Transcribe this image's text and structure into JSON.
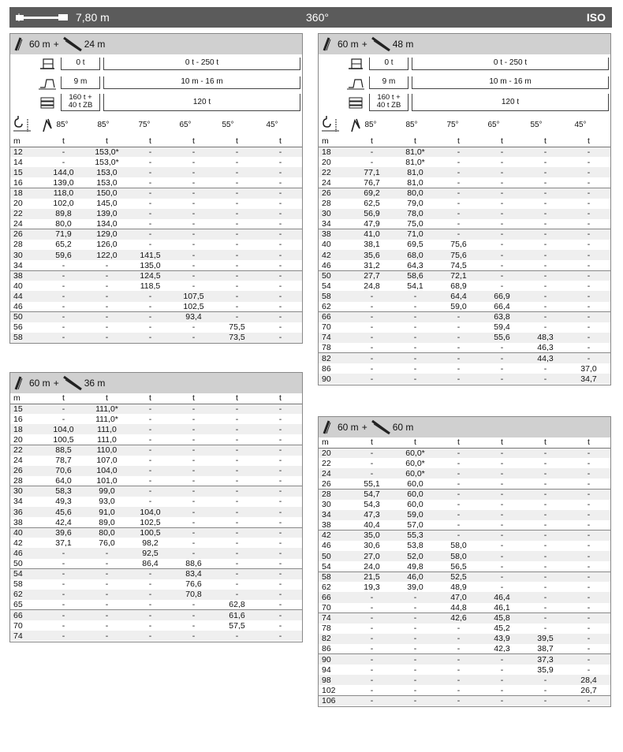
{
  "header": {
    "radius_label": "7,80 m",
    "swing_label": "360°",
    "norm_label": "ISO"
  },
  "config": {
    "counterweight_labels": [
      "0 t",
      "0 t - 250 t"
    ],
    "boom_length_labels": [
      "9 m",
      "10 m - 16 m"
    ],
    "ballast_labels": [
      "160 t +",
      "40 t ZB",
      "120 t"
    ],
    "angles": [
      "85°",
      "85°",
      "75°",
      "65°",
      "55°",
      "45°"
    ]
  },
  "panels": [
    {
      "id": "60-24",
      "main_boom": "60 m",
      "plus": "+",
      "jib": "24 m",
      "has_config": true,
      "units": [
        "m",
        "t",
        "t",
        "t",
        "t",
        "t",
        "t"
      ],
      "rows": [
        [
          "12",
          "-",
          "153,0*",
          "-",
          "-",
          "-",
          "-"
        ],
        [
          "14",
          "-",
          "153,0*",
          "-",
          "-",
          "-",
          "-"
        ],
        [
          "15",
          "144,0",
          "153,0",
          "-",
          "-",
          "-",
          "-"
        ],
        [
          "16",
          "139,0",
          "153,0",
          "-",
          "-",
          "-",
          "-"
        ],
        [
          "18",
          "118,0",
          "150,0",
          "-",
          "-",
          "-",
          "-"
        ],
        [
          "20",
          "102,0",
          "145,0",
          "-",
          "-",
          "-",
          "-"
        ],
        [
          "22",
          "89,8",
          "139,0",
          "-",
          "-",
          "-",
          "-"
        ],
        [
          "24",
          "80,0",
          "134,0",
          "-",
          "-",
          "-",
          "-"
        ],
        [
          "26",
          "71,9",
          "129,0",
          "-",
          "-",
          "-",
          "-"
        ],
        [
          "28",
          "65,2",
          "126,0",
          "-",
          "-",
          "-",
          "-"
        ],
        [
          "30",
          "59,6",
          "122,0",
          "141,5",
          "-",
          "-",
          "-"
        ],
        [
          "34",
          "-",
          "-",
          "135,0",
          "-",
          "-",
          "-"
        ],
        [
          "38",
          "-",
          "-",
          "124,5",
          "-",
          "-",
          "-"
        ],
        [
          "40",
          "-",
          "-",
          "118,5",
          "-",
          "-",
          "-"
        ],
        [
          "44",
          "-",
          "-",
          "-",
          "107,5",
          "-",
          "-"
        ],
        [
          "46",
          "-",
          "-",
          "-",
          "102,5",
          "-",
          "-"
        ],
        [
          "50",
          "-",
          "-",
          "-",
          "93,4",
          "-",
          "-"
        ],
        [
          "56",
          "-",
          "-",
          "-",
          "-",
          "75,5",
          "-"
        ],
        [
          "58",
          "-",
          "-",
          "-",
          "-",
          "73,5",
          "-"
        ]
      ]
    },
    {
      "id": "60-36",
      "main_boom": "60 m",
      "plus": "+",
      "jib": "36 m",
      "has_config": false,
      "units": [
        "m",
        "t",
        "t",
        "t",
        "t",
        "t",
        "t"
      ],
      "rows": [
        [
          "15",
          "-",
          "111,0*",
          "-",
          "-",
          "-",
          "-"
        ],
        [
          "16",
          "-",
          "111,0*",
          "-",
          "-",
          "-",
          "-"
        ],
        [
          "18",
          "104,0",
          "111,0",
          "-",
          "-",
          "-",
          "-"
        ],
        [
          "20",
          "100,5",
          "111,0",
          "-",
          "-",
          "-",
          "-"
        ],
        [
          "22",
          "88,5",
          "110,0",
          "-",
          "-",
          "-",
          "-"
        ],
        [
          "24",
          "78,7",
          "107,0",
          "-",
          "-",
          "-",
          "-"
        ],
        [
          "26",
          "70,6",
          "104,0",
          "-",
          "-",
          "-",
          "-"
        ],
        [
          "28",
          "64,0",
          "101,0",
          "-",
          "-",
          "-",
          "-"
        ],
        [
          "30",
          "58,3",
          "99,0",
          "-",
          "-",
          "-",
          "-"
        ],
        [
          "34",
          "49,3",
          "93,0",
          "-",
          "-",
          "-",
          "-"
        ],
        [
          "36",
          "45,6",
          "91,0",
          "104,0",
          "-",
          "-",
          "-"
        ],
        [
          "38",
          "42,4",
          "89,0",
          "102,5",
          "-",
          "-",
          "-"
        ],
        [
          "40",
          "39,6",
          "80,0",
          "100,5",
          "-",
          "-",
          "-"
        ],
        [
          "42",
          "37,1",
          "76,0",
          "98,2",
          "-",
          "-",
          "-"
        ],
        [
          "46",
          "-",
          "-",
          "92,5",
          "-",
          "-",
          "-"
        ],
        [
          "50",
          "-",
          "-",
          "86,4",
          "88,6",
          "-",
          "-"
        ],
        [
          "54",
          "-",
          "-",
          "-",
          "83,4",
          "-",
          "-"
        ],
        [
          "58",
          "-",
          "-",
          "-",
          "76,6",
          "-",
          "-"
        ],
        [
          "62",
          "-",
          "-",
          "-",
          "70,8",
          "-",
          "-"
        ],
        [
          "65",
          "-",
          "-",
          "-",
          "-",
          "62,8",
          "-"
        ],
        [
          "66",
          "-",
          "-",
          "-",
          "-",
          "61,6",
          "-"
        ],
        [
          "70",
          "-",
          "-",
          "-",
          "-",
          "57,5",
          "-"
        ],
        [
          "74",
          "-",
          "-",
          "-",
          "-",
          "-",
          "-"
        ]
      ]
    },
    {
      "id": "60-48",
      "main_boom": "60 m",
      "plus": "+",
      "jib": "48 m",
      "has_config": true,
      "units": [
        "m",
        "t",
        "t",
        "t",
        "t",
        "t",
        "t"
      ],
      "rows": [
        [
          "18",
          "-",
          "81,0*",
          "-",
          "-",
          "-",
          "-"
        ],
        [
          "20",
          "-",
          "81,0*",
          "-",
          "-",
          "-",
          "-"
        ],
        [
          "22",
          "77,1",
          "81,0",
          "-",
          "-",
          "-",
          "-"
        ],
        [
          "24",
          "76,7",
          "81,0",
          "-",
          "-",
          "-",
          "-"
        ],
        [
          "26",
          "69,2",
          "80,0",
          "-",
          "-",
          "-",
          "-"
        ],
        [
          "28",
          "62,5",
          "79,0",
          "-",
          "-",
          "-",
          "-"
        ],
        [
          "30",
          "56,9",
          "78,0",
          "-",
          "-",
          "-",
          "-"
        ],
        [
          "34",
          "47,9",
          "75,0",
          "-",
          "-",
          "-",
          "-"
        ],
        [
          "38",
          "41,0",
          "71,0",
          "-",
          "-",
          "-",
          "-"
        ],
        [
          "40",
          "38,1",
          "69,5",
          "75,6",
          "-",
          "-",
          "-"
        ],
        [
          "42",
          "35,6",
          "68,0",
          "75,6",
          "-",
          "-",
          "-"
        ],
        [
          "46",
          "31,2",
          "64,3",
          "74,5",
          "-",
          "-",
          "-"
        ],
        [
          "50",
          "27,7",
          "58,6",
          "72,1",
          "-",
          "-",
          "-"
        ],
        [
          "54",
          "24,8",
          "54,1",
          "68,9",
          "-",
          "-",
          "-"
        ],
        [
          "58",
          "-",
          "-",
          "64,4",
          "66,9",
          "-",
          "-"
        ],
        [
          "62",
          "-",
          "-",
          "59,0",
          "66,4",
          "-",
          "-"
        ],
        [
          "66",
          "-",
          "-",
          "-",
          "63,8",
          "-",
          "-"
        ],
        [
          "70",
          "-",
          "-",
          "-",
          "59,4",
          "-",
          "-"
        ],
        [
          "74",
          "-",
          "-",
          "-",
          "55,6",
          "48,3",
          "-"
        ],
        [
          "78",
          "-",
          "-",
          "-",
          "-",
          "46,3",
          "-"
        ],
        [
          "82",
          "-",
          "-",
          "-",
          "-",
          "44,3",
          "-"
        ],
        [
          "86",
          "-",
          "-",
          "-",
          "-",
          "-",
          "37,0"
        ],
        [
          "90",
          "-",
          "-",
          "-",
          "-",
          "-",
          "34,7"
        ]
      ]
    },
    {
      "id": "60-60",
      "main_boom": "60 m",
      "plus": "+",
      "jib": "60 m",
      "has_config": false,
      "units": [
        "m",
        "t",
        "t",
        "t",
        "t",
        "t",
        "t"
      ],
      "rows": [
        [
          "20",
          "-",
          "60,0*",
          "-",
          "-",
          "-",
          "-"
        ],
        [
          "22",
          "-",
          "60,0*",
          "-",
          "-",
          "-",
          "-"
        ],
        [
          "24",
          "-",
          "60,0*",
          "-",
          "-",
          "-",
          "-"
        ],
        [
          "26",
          "55,1",
          "60,0",
          "-",
          "-",
          "-",
          "-"
        ],
        [
          "28",
          "54,7",
          "60,0",
          "-",
          "-",
          "-",
          "-"
        ],
        [
          "30",
          "54,3",
          "60,0",
          "-",
          "-",
          "-",
          "-"
        ],
        [
          "34",
          "47,3",
          "59,0",
          "-",
          "-",
          "-",
          "-"
        ],
        [
          "38",
          "40,4",
          "57,0",
          "-",
          "-",
          "-",
          "-"
        ],
        [
          "42",
          "35,0",
          "55,3",
          "-",
          "-",
          "-",
          "-"
        ],
        [
          "46",
          "30,6",
          "53,8",
          "58,0",
          "-",
          "-",
          "-"
        ],
        [
          "50",
          "27,0",
          "52,0",
          "58,0",
          "-",
          "-",
          "-"
        ],
        [
          "54",
          "24,0",
          "49,8",
          "56,5",
          "-",
          "-",
          "-"
        ],
        [
          "58",
          "21,5",
          "46,0",
          "52,5",
          "-",
          "-",
          "-"
        ],
        [
          "62",
          "19,3",
          "39,0",
          "48,9",
          "-",
          "-",
          "-"
        ],
        [
          "66",
          "-",
          "-",
          "47,0",
          "46,4",
          "-",
          "-"
        ],
        [
          "70",
          "-",
          "-",
          "44,8",
          "46,1",
          "-",
          "-"
        ],
        [
          "74",
          "-",
          "-",
          "42,6",
          "45,8",
          "-",
          "-"
        ],
        [
          "78",
          "-",
          "-",
          "-",
          "45,2",
          "-",
          "-"
        ],
        [
          "82",
          "-",
          "-",
          "-",
          "43,9",
          "39,5",
          "-"
        ],
        [
          "86",
          "-",
          "-",
          "-",
          "42,3",
          "38,7",
          "-"
        ],
        [
          "90",
          "-",
          "-",
          "-",
          "-",
          "37,3",
          "-"
        ],
        [
          "94",
          "-",
          "-",
          "-",
          "-",
          "35,9",
          "-"
        ],
        [
          "98",
          "-",
          "-",
          "-",
          "-",
          "-",
          "28,4"
        ],
        [
          "102",
          "-",
          "-",
          "-",
          "-",
          "-",
          "26,7"
        ],
        [
          "106",
          "-",
          "-",
          "-",
          "-",
          "-",
          "-"
        ]
      ]
    }
  ]
}
